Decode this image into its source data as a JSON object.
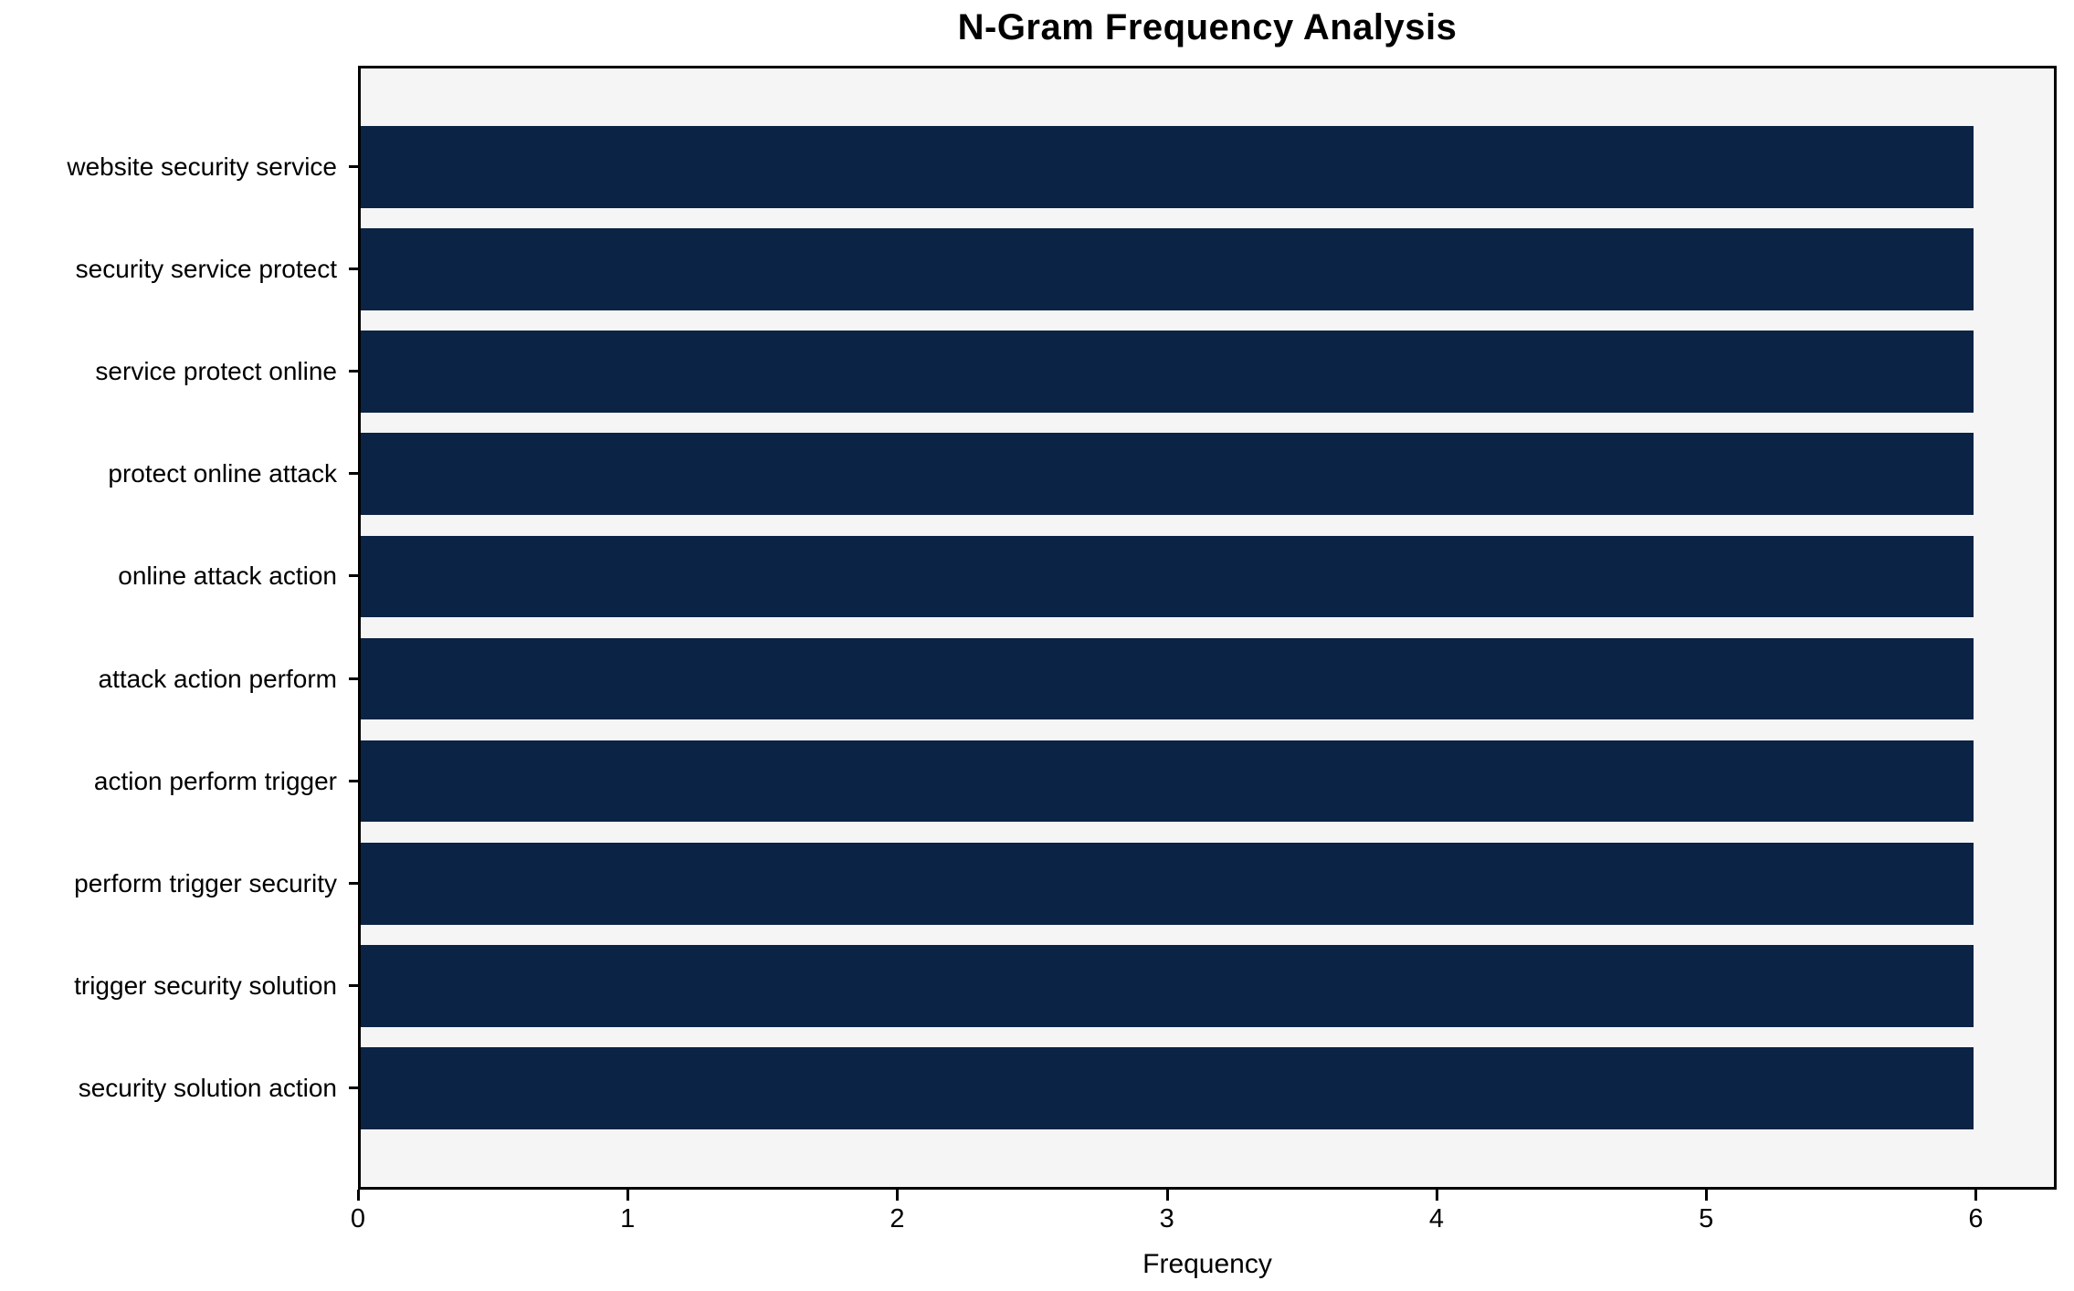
{
  "chart_data": {
    "type": "bar",
    "orientation": "horizontal",
    "title": "N-Gram Frequency Analysis",
    "xlabel": "Frequency",
    "ylabel": "",
    "categories": [
      "website security service",
      "security service protect",
      "service protect online",
      "protect online attack",
      "online attack action",
      "attack action perform",
      "action perform trigger",
      "perform trigger security",
      "trigger security solution",
      "security solution action"
    ],
    "values": [
      6,
      6,
      6,
      6,
      6,
      6,
      6,
      6,
      6,
      6
    ],
    "xticks": [
      0,
      1,
      2,
      3,
      4,
      5,
      6
    ],
    "xlim": [
      0,
      6.3
    ],
    "grid": false,
    "legend": "none",
    "bar_color": "#0b2344",
    "plot_bg_color": "#f5f5f5",
    "page_bg_color": "#ffffff",
    "axis_color": "#000000"
  }
}
